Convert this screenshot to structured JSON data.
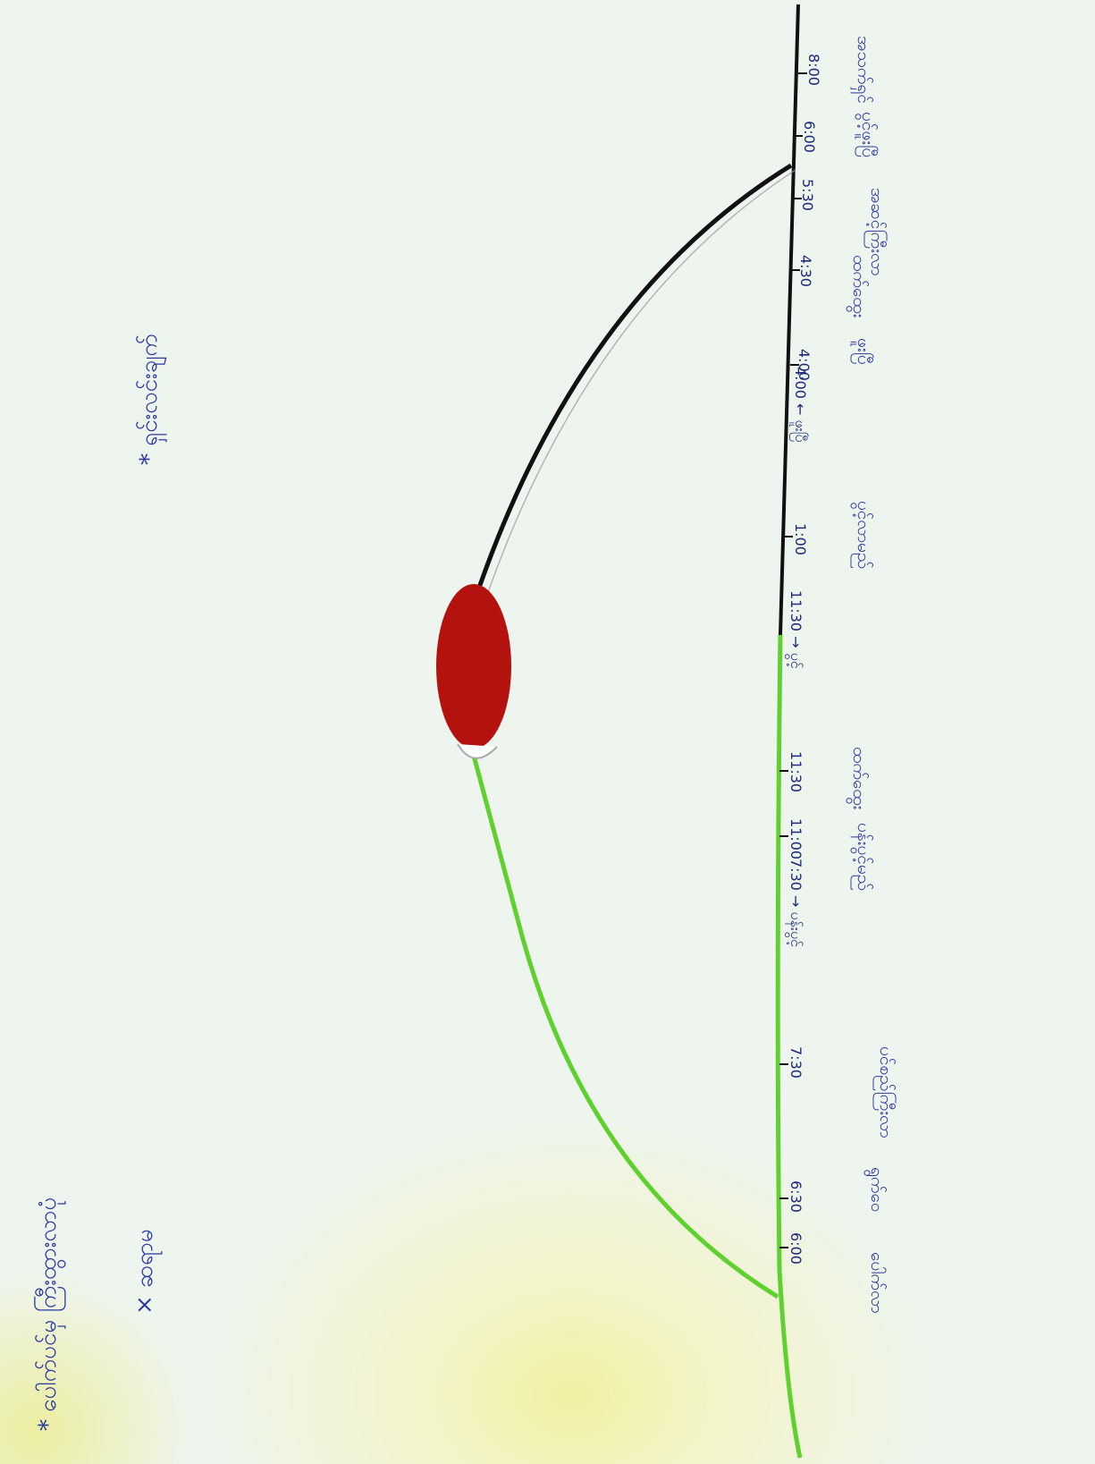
{
  "header": {
    "title": "* ပေါက်ပင်မှ ကြီးထွားလာပုံ",
    "note": "* ရှင်းလင်းချက်",
    "author": "× ဆရာမ"
  },
  "colors": {
    "green_stage": "#5fd12e",
    "black_stage": "#111111",
    "flower": "#b3120e",
    "ink": "#2a3aa0"
  },
  "timeline": {
    "ticks": [
      {
        "label": "8:00",
        "stage": "အသက်ရှင်"
      },
      {
        "label": "6:00",
        "stage": "ပွင့်ဖူးပြီ"
      },
      {
        "label": "5:30",
        "stage": "အဆင့်ကြီးလာ"
      },
      {
        "label": "4:30",
        "stage": "ထက်ထွေး"
      },
      {
        "label": "4:00",
        "stage": "ဖူးပြီ"
      },
      {
        "label": "1:00",
        "stage": "ပွင့်လာမည်"
      },
      {
        "label": "11:30",
        "stage": "ထက်ထွေး"
      },
      {
        "label": "11:00",
        "stage": "ပန်းပွင့်မည်"
      },
      {
        "label": "7:30",
        "stage": "ပင်စည်ကြီးလာ"
      },
      {
        "label": "6:30",
        "stage": "ရွက်ဝေ"
      },
      {
        "label": "6:00",
        "stage": "ပေါက်လာ"
      }
    ],
    "arrow_labels": [
      {
        "text": "4:00 ← ဖူးပြီ"
      },
      {
        "text": "11:30 → ပွင့်"
      },
      {
        "text": "7:30 → ပန်းပွင့်"
      }
    ]
  }
}
